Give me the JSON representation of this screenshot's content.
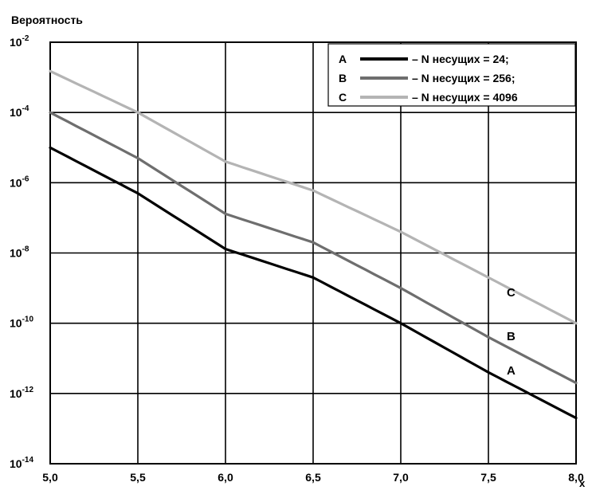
{
  "chart_data": {
    "type": "line",
    "title": "",
    "ylabel": "Вероятность",
    "xlabel": "x",
    "xlim": [
      5.0,
      8.0
    ],
    "ylim_log10": [
      -14,
      -2
    ],
    "y_scale": "log",
    "grid": true,
    "x_ticks": [
      5.0,
      5.5,
      6.0,
      6.5,
      7.0,
      7.5,
      8.0
    ],
    "x_tick_labels": [
      "5,0",
      "5,5",
      "6,0",
      "6,5",
      "7,0",
      "7,5",
      "8,0"
    ],
    "y_ticks": [
      {
        "exp": -2,
        "base": "10",
        "sup": "-2"
      },
      {
        "exp": -4,
        "base": "10",
        "sup": "-4"
      },
      {
        "exp": -6,
        "base": "10",
        "sup": "-6"
      },
      {
        "exp": -8,
        "base": "10",
        "sup": "-8"
      },
      {
        "exp": -10,
        "base": "10",
        "sup": "-10"
      },
      {
        "exp": -12,
        "base": "10",
        "sup": "-12"
      },
      {
        "exp": -14,
        "base": "10",
        "sup": "-14"
      }
    ],
    "legend_position": "top-right",
    "series": [
      {
        "letter": "A",
        "name": "– N несущих = 24;",
        "color": "#000000",
        "x": [
          5.0,
          5.5,
          6.0,
          6.5,
          7.0,
          7.5,
          8.0
        ],
        "y": [
          1e-05,
          5e-07,
          1.3e-08,
          2e-09,
          1e-10,
          4e-12,
          2e-13
        ]
      },
      {
        "letter": "B",
        "name": "– N несущих = 256;",
        "color": "#6e6e6e",
        "x": [
          5.0,
          5.5,
          6.0,
          6.5,
          7.0,
          7.5,
          8.0
        ],
        "y": [
          0.0001,
          5e-06,
          1.3e-07,
          2e-08,
          1e-09,
          4e-11,
          2e-12
        ]
      },
      {
        "letter": "C",
        "name": "– N несущих = 4096",
        "color": "#b4b4b4",
        "x": [
          5.0,
          5.5,
          6.0,
          6.5,
          7.0,
          7.5,
          8.0
        ],
        "y": [
          0.0015,
          0.0001,
          4e-06,
          6e-07,
          4e-08,
          2e-09,
          1e-10
        ]
      }
    ],
    "annotations": [
      {
        "text": "A",
        "series": "A"
      },
      {
        "text": "B",
        "series": "B"
      },
      {
        "text": "C",
        "series": "C"
      }
    ]
  }
}
